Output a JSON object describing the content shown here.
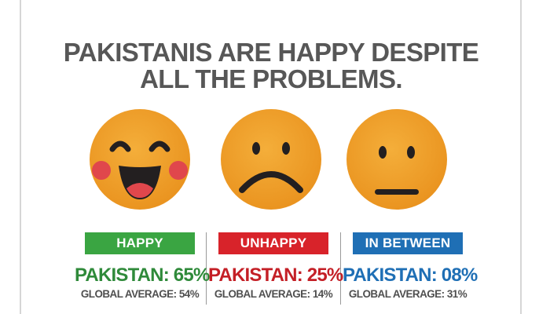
{
  "title": {
    "line1": "PAKISTANIS ARE HAPPY DESPITE",
    "line2": "ALL THE PROBLEMS."
  },
  "chart_data": {
    "type": "table",
    "title": "PAKISTANIS ARE HAPPY DESPITE ALL THE PROBLEMS.",
    "categories": [
      "HAPPY",
      "UNHAPPY",
      "IN BETWEEN"
    ],
    "rows": [
      {
        "category": "HAPPY",
        "icon": "laughing-face-icon",
        "color": "#3aa542",
        "pakistan_label": "PAKISTAN:",
        "pakistan_value": "65%",
        "global_label": "GLOBAL AVERAGE:",
        "global_value": "54%"
      },
      {
        "category": "UNHAPPY",
        "icon": "sad-face-icon",
        "color": "#d8232a",
        "pakistan_label": "PAKISTAN:",
        "pakistan_value": "25%",
        "global_label": "GLOBAL AVERAGE:",
        "global_value": "14%"
      },
      {
        "category": "IN BETWEEN",
        "icon": "neutral-face-icon",
        "color": "#1f6fb5",
        "pakistan_label": "PAKISTAN:",
        "pakistan_value": "08%",
        "global_label": "GLOBAL AVERAGE:",
        "global_value": "31%"
      }
    ],
    "series": [
      {
        "name": "PAKISTAN",
        "values": [
          65,
          25,
          8
        ]
      },
      {
        "name": "GLOBAL AVERAGE",
        "values": [
          54,
          14,
          31
        ]
      }
    ]
  },
  "colors": {
    "face": "#f0a12c",
    "face_dark": "#e08a16",
    "feature": "#231f20",
    "cheek": "#e0474c",
    "title": "#575757"
  }
}
